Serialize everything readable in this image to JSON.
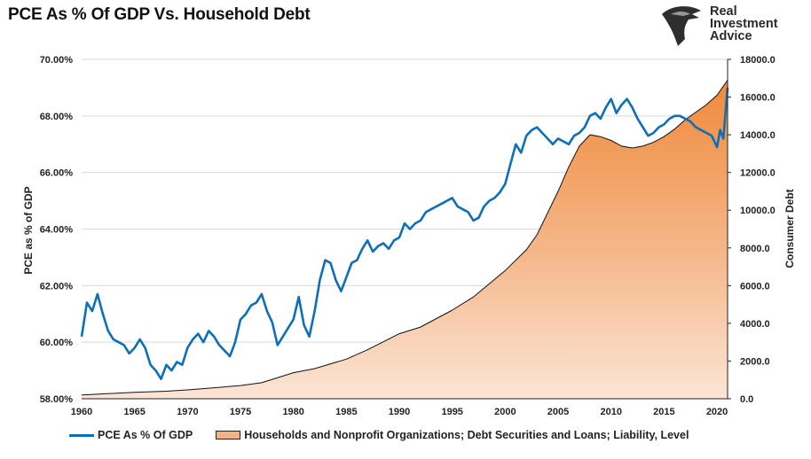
{
  "title": "PCE As % Of GDP Vs. Household Debt",
  "logo": {
    "lines": [
      "Real",
      "Investment",
      "Advice"
    ],
    "icon": "eagle-head-icon"
  },
  "chart_data": {
    "type": "line+area",
    "title": "PCE As % Of GDP Vs. Household Debt",
    "x_ticks": [
      "1960",
      "1965",
      "1970",
      "1975",
      "1980",
      "1985",
      "1990",
      "1995",
      "2000",
      "2005",
      "2010",
      "2015",
      "2020"
    ],
    "xlim": [
      1960,
      2021
    ],
    "left_axis": {
      "label": "PCE as % of GDP",
      "ticks": [
        "58.00%",
        "60.00%",
        "62.00%",
        "64.00%",
        "66.00%",
        "68.00%",
        "70.00%"
      ],
      "ylim": [
        58,
        70
      ]
    },
    "right_axis": {
      "label": "Consumer Debt",
      "ticks": [
        "0.0",
        "2000.0",
        "4000.0",
        "6000.0",
        "8000.0",
        "10000.0",
        "12000.0",
        "14000.0",
        "16000.0",
        "18000.0"
      ],
      "ylim": [
        0,
        18000
      ]
    },
    "series": [
      {
        "name": "PCE As % Of GDP",
        "axis": "left",
        "color": "#0d6fb8",
        "points": [
          [
            1960,
            60.2
          ],
          [
            1960.5,
            61.4
          ],
          [
            1961,
            61.1
          ],
          [
            1961.5,
            61.7
          ],
          [
            1962,
            61.0
          ],
          [
            1962.5,
            60.4
          ],
          [
            1963,
            60.1
          ],
          [
            1963.5,
            60.0
          ],
          [
            1964,
            59.9
          ],
          [
            1964.5,
            59.6
          ],
          [
            1965,
            59.8
          ],
          [
            1965.5,
            60.1
          ],
          [
            1966,
            59.8
          ],
          [
            1966.5,
            59.2
          ],
          [
            1967,
            59.0
          ],
          [
            1967.5,
            58.7
          ],
          [
            1968,
            59.2
          ],
          [
            1968.5,
            59.0
          ],
          [
            1969,
            59.3
          ],
          [
            1969.5,
            59.2
          ],
          [
            1970,
            59.8
          ],
          [
            1970.5,
            60.1
          ],
          [
            1971,
            60.3
          ],
          [
            1971.5,
            60.0
          ],
          [
            1972,
            60.4
          ],
          [
            1972.5,
            60.2
          ],
          [
            1973,
            59.9
          ],
          [
            1973.5,
            59.7
          ],
          [
            1974,
            59.5
          ],
          [
            1974.5,
            60.0
          ],
          [
            1975,
            60.8
          ],
          [
            1975.5,
            61.0
          ],
          [
            1976,
            61.3
          ],
          [
            1976.5,
            61.4
          ],
          [
            1977,
            61.7
          ],
          [
            1977.5,
            61.1
          ],
          [
            1978,
            60.7
          ],
          [
            1978.5,
            59.9
          ],
          [
            1979,
            60.2
          ],
          [
            1979.5,
            60.5
          ],
          [
            1980,
            60.8
          ],
          [
            1980.5,
            61.6
          ],
          [
            1981,
            60.6
          ],
          [
            1981.5,
            60.2
          ],
          [
            1982,
            61.1
          ],
          [
            1982.5,
            62.2
          ],
          [
            1983,
            62.9
          ],
          [
            1983.5,
            62.8
          ],
          [
            1984,
            62.2
          ],
          [
            1984.5,
            61.8
          ],
          [
            1985,
            62.3
          ],
          [
            1985.5,
            62.8
          ],
          [
            1986,
            62.9
          ],
          [
            1986.5,
            63.3
          ],
          [
            1987,
            63.6
          ],
          [
            1987.5,
            63.2
          ],
          [
            1988,
            63.4
          ],
          [
            1988.5,
            63.5
          ],
          [
            1989,
            63.3
          ],
          [
            1989.5,
            63.6
          ],
          [
            1990,
            63.7
          ],
          [
            1990.5,
            64.2
          ],
          [
            1991,
            64.0
          ],
          [
            1991.5,
            64.2
          ],
          [
            1992,
            64.3
          ],
          [
            1992.5,
            64.6
          ],
          [
            1993,
            64.7
          ],
          [
            1993.5,
            64.8
          ],
          [
            1994,
            64.9
          ],
          [
            1994.5,
            65.0
          ],
          [
            1995,
            65.1
          ],
          [
            1995.5,
            64.8
          ],
          [
            1996,
            64.7
          ],
          [
            1996.5,
            64.6
          ],
          [
            1997,
            64.3
          ],
          [
            1997.5,
            64.4
          ],
          [
            1998,
            64.8
          ],
          [
            1998.5,
            65.0
          ],
          [
            1999,
            65.1
          ],
          [
            1999.5,
            65.3
          ],
          [
            2000,
            65.6
          ],
          [
            2000.5,
            66.3
          ],
          [
            2001,
            67.0
          ],
          [
            2001.5,
            66.7
          ],
          [
            2002,
            67.3
          ],
          [
            2002.5,
            67.5
          ],
          [
            2003,
            67.6
          ],
          [
            2003.5,
            67.4
          ],
          [
            2004,
            67.2
          ],
          [
            2004.5,
            67.0
          ],
          [
            2005,
            67.2
          ],
          [
            2005.5,
            67.1
          ],
          [
            2006,
            67.0
          ],
          [
            2006.5,
            67.3
          ],
          [
            2007,
            67.4
          ],
          [
            2007.5,
            67.6
          ],
          [
            2008,
            68.0
          ],
          [
            2008.5,
            68.1
          ],
          [
            2009,
            67.9
          ],
          [
            2009.5,
            68.3
          ],
          [
            2010,
            68.6
          ],
          [
            2010.5,
            68.1
          ],
          [
            2011,
            68.4
          ],
          [
            2011.5,
            68.6
          ],
          [
            2012,
            68.3
          ],
          [
            2012.5,
            67.9
          ],
          [
            2013,
            67.6
          ],
          [
            2013.5,
            67.3
          ],
          [
            2014,
            67.4
          ],
          [
            2014.5,
            67.6
          ],
          [
            2015,
            67.7
          ],
          [
            2015.5,
            67.9
          ],
          [
            2016,
            68.0
          ],
          [
            2016.5,
            68.0
          ],
          [
            2017,
            67.9
          ],
          [
            2017.5,
            67.8
          ],
          [
            2018,
            67.6
          ],
          [
            2018.5,
            67.5
          ],
          [
            2019,
            67.4
          ],
          [
            2019.5,
            67.3
          ],
          [
            2020,
            66.9
          ],
          [
            2020.3,
            67.5
          ],
          [
            2020.6,
            67.2
          ],
          [
            2021,
            69.0
          ]
        ]
      },
      {
        "name": "Households and Nonprofit Organizations; Debt Securities and Loans; Liability, Level",
        "axis": "right",
        "color": "#f4b183",
        "points": [
          [
            1960,
            200
          ],
          [
            1962,
            260
          ],
          [
            1965,
            340
          ],
          [
            1968,
            400
          ],
          [
            1970,
            470
          ],
          [
            1972,
            560
          ],
          [
            1975,
            700
          ],
          [
            1977,
            850
          ],
          [
            1980,
            1380
          ],
          [
            1982,
            1600
          ],
          [
            1985,
            2100
          ],
          [
            1987,
            2600
          ],
          [
            1990,
            3450
          ],
          [
            1992,
            3800
          ],
          [
            1995,
            4700
          ],
          [
            1997,
            5400
          ],
          [
            2000,
            6800
          ],
          [
            2002,
            7900
          ],
          [
            2003,
            8700
          ],
          [
            2005,
            11000
          ],
          [
            2006,
            12300
          ],
          [
            2007,
            13400
          ],
          [
            2008,
            14000
          ],
          [
            2009,
            13900
          ],
          [
            2010,
            13700
          ],
          [
            2011,
            13400
          ],
          [
            2012,
            13300
          ],
          [
            2013,
            13400
          ],
          [
            2014,
            13600
          ],
          [
            2015,
            13900
          ],
          [
            2016,
            14300
          ],
          [
            2017,
            14800
          ],
          [
            2018,
            15200
          ],
          [
            2019,
            15600
          ],
          [
            2020,
            16100
          ],
          [
            2021,
            16900
          ]
        ]
      }
    ]
  },
  "legend": {
    "pce_label": "PCE As % Of GDP",
    "debt_label": "Households and Nonprofit Organizations; Debt Securities and Loans; Liability, Level"
  }
}
